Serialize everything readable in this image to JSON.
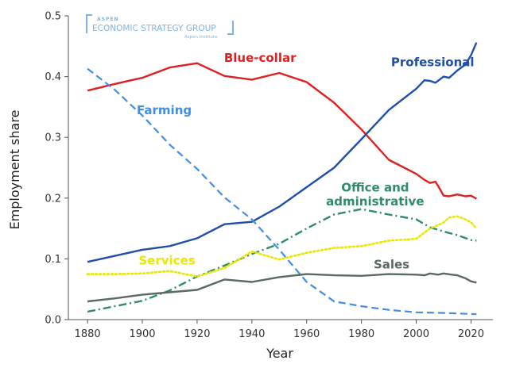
{
  "watermark": {
    "top": "ASPEN",
    "main": "ECONOMIC STRATEGY GROUP",
    "sub": "Aspen Institute"
  },
  "chart_data": {
    "type": "line",
    "title": "",
    "xlabel": "Year",
    "ylabel": "Employment share",
    "xlim": [
      1873,
      2028
    ],
    "ylim": [
      0,
      0.5
    ],
    "x_ticks": [
      1880,
      1900,
      1920,
      1940,
      1960,
      1980,
      2000,
      2020
    ],
    "y_ticks": [
      0.0,
      0.1,
      0.2,
      0.3,
      0.4,
      0.5
    ],
    "y_tick_labels": [
      "0.0",
      "0.1",
      "0.2",
      "0.3",
      "0.4",
      "0.5"
    ],
    "grid": false,
    "series": [
      {
        "name": "Blue-collar",
        "color": "#e02020",
        "style": "solid",
        "points": [
          [
            1880,
            0.377
          ],
          [
            1890,
            0.388
          ],
          [
            1900,
            0.398
          ],
          [
            1910,
            0.415
          ],
          [
            1920,
            0.422
          ],
          [
            1930,
            0.401
          ],
          [
            1940,
            0.395
          ],
          [
            1950,
            0.406
          ],
          [
            1960,
            0.391
          ],
          [
            1970,
            0.357
          ],
          [
            1980,
            0.313
          ],
          [
            1990,
            0.263
          ],
          [
            2000,
            0.24
          ],
          [
            2003,
            0.23
          ],
          [
            2005,
            0.225
          ],
          [
            2007,
            0.227
          ],
          [
            2008,
            0.22
          ],
          [
            2010,
            0.204
          ],
          [
            2012,
            0.203
          ],
          [
            2015,
            0.206
          ],
          [
            2018,
            0.203
          ],
          [
            2020,
            0.204
          ],
          [
            2022,
            0.199
          ]
        ]
      },
      {
        "name": "Professional",
        "color": "#1f4fa8",
        "style": "solid",
        "points": [
          [
            1880,
            0.095
          ],
          [
            1890,
            0.105
          ],
          [
            1900,
            0.115
          ],
          [
            1910,
            0.121
          ],
          [
            1920,
            0.134
          ],
          [
            1930,
            0.157
          ],
          [
            1940,
            0.161
          ],
          [
            1950,
            0.186
          ],
          [
            1960,
            0.218
          ],
          [
            1970,
            0.25
          ],
          [
            1980,
            0.297
          ],
          [
            1990,
            0.345
          ],
          [
            2000,
            0.38
          ],
          [
            2003,
            0.394
          ],
          [
            2005,
            0.393
          ],
          [
            2007,
            0.39
          ],
          [
            2010,
            0.4
          ],
          [
            2012,
            0.398
          ],
          [
            2015,
            0.41
          ],
          [
            2018,
            0.42
          ],
          [
            2020,
            0.435
          ],
          [
            2022,
            0.456
          ]
        ]
      },
      {
        "name": "Farming",
        "color": "#3f8ee8",
        "style": "dashed",
        "points": [
          [
            1880,
            0.413
          ],
          [
            1890,
            0.378
          ],
          [
            1900,
            0.336
          ],
          [
            1910,
            0.288
          ],
          [
            1920,
            0.248
          ],
          [
            1930,
            0.201
          ],
          [
            1940,
            0.165
          ],
          [
            1950,
            0.115
          ],
          [
            1960,
            0.062
          ],
          [
            1970,
            0.03
          ],
          [
            1980,
            0.022
          ],
          [
            1990,
            0.016
          ],
          [
            2000,
            0.012
          ],
          [
            2010,
            0.011
          ],
          [
            2022,
            0.009
          ]
        ]
      },
      {
        "name": "Office and administrative",
        "color": "#2e8b6b",
        "style": "dashdot",
        "points": [
          [
            1880,
            0.013
          ],
          [
            1890,
            0.022
          ],
          [
            1900,
            0.031
          ],
          [
            1910,
            0.048
          ],
          [
            1920,
            0.071
          ],
          [
            1930,
            0.089
          ],
          [
            1940,
            0.108
          ],
          [
            1950,
            0.125
          ],
          [
            1960,
            0.15
          ],
          [
            1970,
            0.173
          ],
          [
            1980,
            0.182
          ],
          [
            1990,
            0.173
          ],
          [
            2000,
            0.165
          ],
          [
            2005,
            0.152
          ],
          [
            2010,
            0.145
          ],
          [
            2015,
            0.139
          ],
          [
            2020,
            0.131
          ],
          [
            2022,
            0.13
          ]
        ]
      },
      {
        "name": "Services",
        "color": "#e8e800",
        "style": "dotted",
        "points": [
          [
            1880,
            0.075
          ],
          [
            1890,
            0.075
          ],
          [
            1900,
            0.076
          ],
          [
            1910,
            0.08
          ],
          [
            1920,
            0.071
          ],
          [
            1930,
            0.085
          ],
          [
            1940,
            0.112
          ],
          [
            1950,
            0.099
          ],
          [
            1960,
            0.11
          ],
          [
            1970,
            0.118
          ],
          [
            1980,
            0.121
          ],
          [
            1990,
            0.13
          ],
          [
            2000,
            0.133
          ],
          [
            2005,
            0.15
          ],
          [
            2010,
            0.16
          ],
          [
            2012,
            0.168
          ],
          [
            2015,
            0.17
          ],
          [
            2018,
            0.165
          ],
          [
            2020,
            0.16
          ],
          [
            2022,
            0.15
          ]
        ]
      },
      {
        "name": "Sales",
        "color": "#5a6b60",
        "style": "solid",
        "points": [
          [
            1880,
            0.03
          ],
          [
            1890,
            0.035
          ],
          [
            1900,
            0.041
          ],
          [
            1910,
            0.045
          ],
          [
            1920,
            0.049
          ],
          [
            1930,
            0.066
          ],
          [
            1940,
            0.062
          ],
          [
            1950,
            0.07
          ],
          [
            1960,
            0.075
          ],
          [
            1970,
            0.073
          ],
          [
            1980,
            0.072
          ],
          [
            1990,
            0.075
          ],
          [
            2000,
            0.074
          ],
          [
            2003,
            0.073
          ],
          [
            2005,
            0.076
          ],
          [
            2008,
            0.074
          ],
          [
            2010,
            0.076
          ],
          [
            2013,
            0.074
          ],
          [
            2015,
            0.073
          ],
          [
            2018,
            0.068
          ],
          [
            2020,
            0.063
          ],
          [
            2022,
            0.061
          ]
        ]
      }
    ],
    "annotations": [
      {
        "text": "Blue-collar",
        "x": 1943,
        "y": 0.424,
        "color": "#e02020"
      },
      {
        "text": "Professional",
        "x": 2006,
        "y": 0.417,
        "color": "#1f4fa8"
      },
      {
        "text": "Farming",
        "x": 1908,
        "y": 0.338,
        "color": "#3f8ee8"
      },
      {
        "text": "Office and",
        "x": 1985,
        "y": 0.211,
        "color": "#2e8b6b"
      },
      {
        "text": "administrative",
        "x": 1985,
        "y": 0.188,
        "color": "#2e8b6b"
      },
      {
        "text": "Services",
        "x": 1909,
        "y": 0.091,
        "color": "#e8e800"
      },
      {
        "text": "Sales",
        "x": 1991,
        "y": 0.084,
        "color": "#5a6b60"
      }
    ]
  }
}
